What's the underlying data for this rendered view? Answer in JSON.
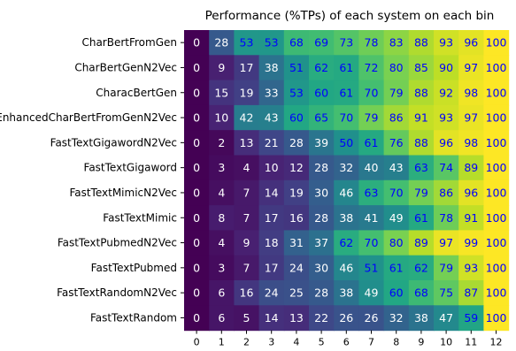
{
  "chart_data": {
    "type": "heatmap",
    "title": "Performance (%TPs) of each system on each bin",
    "xlabel": "",
    "ylabel": "",
    "x_ticks": [
      "0",
      "1",
      "2",
      "3",
      "4",
      "5",
      "6",
      "7",
      "8",
      "9",
      "10",
      "11",
      "12"
    ],
    "y_ticks": [
      "CharBertFromGen",
      "CharBertGenN2Vec",
      "CharacBertGen",
      "EnhancedCharBertFromGenN2Vec",
      "FastTextGigawordN2Vec",
      "FastTextGigaword",
      "FastTextMimicN2Vec",
      "FastTextMimic",
      "FastTextPubmedN2Vec",
      "FastTextPubmed",
      "FastTextRandomN2Vec",
      "FastTextRandom"
    ],
    "values": [
      [
        0,
        28,
        53,
        53,
        68,
        69,
        73,
        78,
        83,
        88,
        93,
        96,
        100
      ],
      [
        0,
        9,
        17,
        38,
        51,
        62,
        61,
        72,
        80,
        85,
        90,
        97,
        100
      ],
      [
        0,
        15,
        19,
        33,
        53,
        60,
        61,
        70,
        79,
        88,
        92,
        98,
        100
      ],
      [
        0,
        10,
        42,
        43,
        60,
        65,
        70,
        79,
        86,
        91,
        93,
        97,
        100
      ],
      [
        0,
        2,
        13,
        21,
        28,
        39,
        50,
        61,
        76,
        88,
        96,
        98,
        100
      ],
      [
        0,
        3,
        4,
        10,
        12,
        28,
        32,
        40,
        43,
        63,
        74,
        89,
        100
      ],
      [
        0,
        4,
        7,
        14,
        19,
        30,
        46,
        63,
        70,
        79,
        86,
        96,
        100
      ],
      [
        0,
        8,
        7,
        17,
        16,
        28,
        38,
        41,
        49,
        61,
        78,
        91,
        100
      ],
      [
        0,
        4,
        9,
        18,
        31,
        37,
        62,
        70,
        80,
        89,
        97,
        99,
        100
      ],
      [
        0,
        3,
        7,
        17,
        24,
        30,
        46,
        51,
        61,
        62,
        79,
        93,
        100
      ],
      [
        0,
        6,
        16,
        24,
        25,
        28,
        38,
        49,
        60,
        68,
        75,
        87,
        100
      ],
      [
        0,
        6,
        5,
        14,
        13,
        22,
        26,
        26,
        32,
        38,
        47,
        59,
        100
      ]
    ],
    "value_range": [
      0,
      100
    ],
    "colormap": "viridis",
    "cell_text_colors": {
      "light": "#ffffff",
      "dark": "#0000ff"
    },
    "grid": false
  }
}
